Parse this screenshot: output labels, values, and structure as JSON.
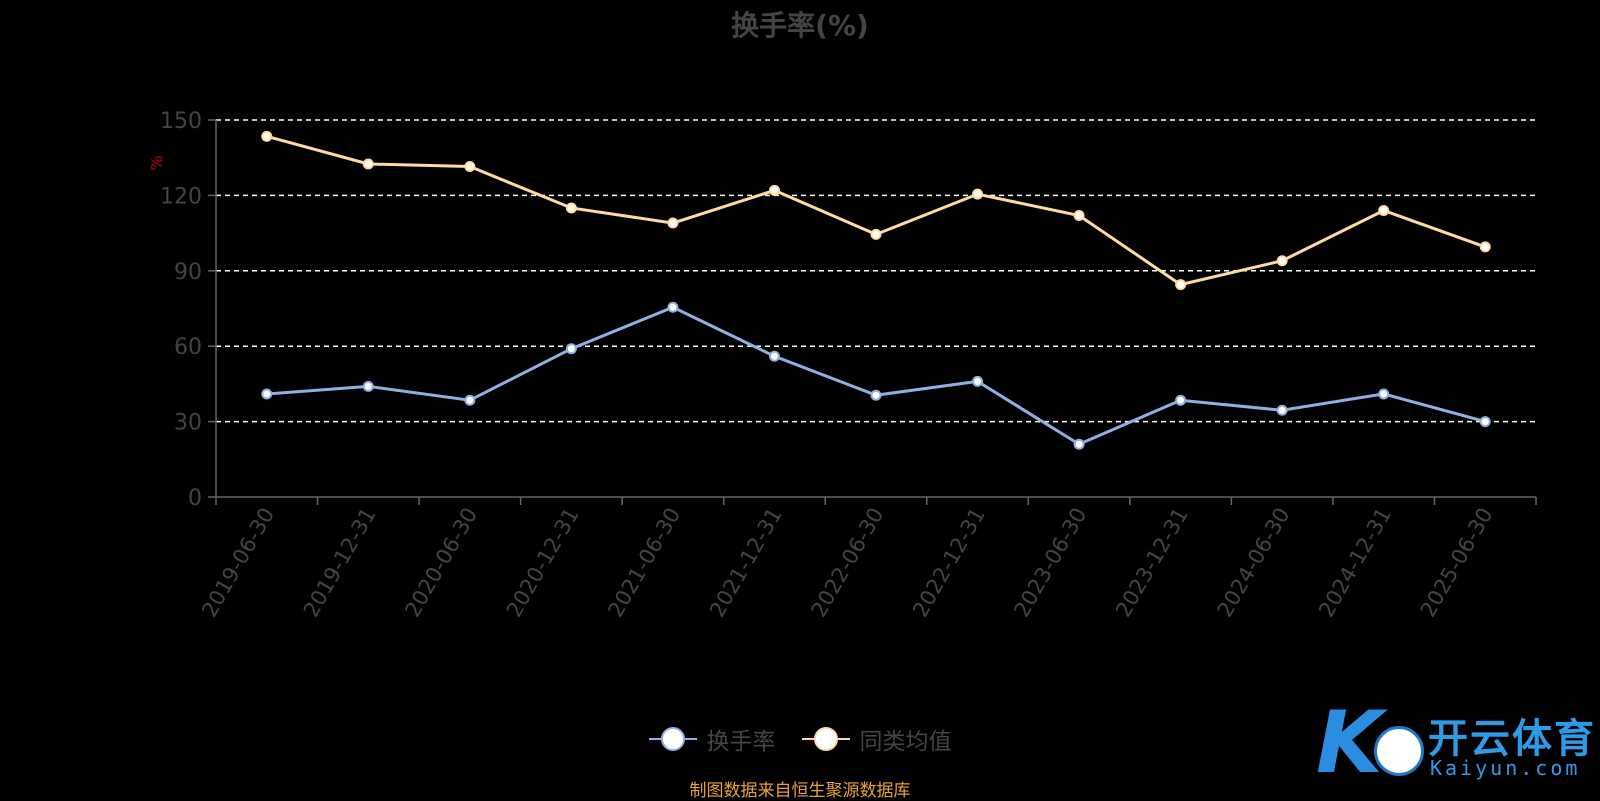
{
  "source": "制图数据来自恒生聚源数据库",
  "logo": {
    "text_cn": "开云体育",
    "text_en": "Kaiyun.com"
  },
  "colors": {
    "series1": "#8fb0e0",
    "series2": "#ffdba0",
    "grid": "#ffffff",
    "axis": "#666666",
    "ylabel": "#c00000"
  },
  "chart_data": {
    "type": "line",
    "title": "换手率(%)",
    "ylabel": "%",
    "ylim": [
      0,
      150
    ],
    "yticks": [
      0,
      30,
      60,
      90,
      120,
      150
    ],
    "grid": true,
    "legend_position": "bottom-center",
    "categories": [
      "2019-06-30",
      "2019-12-31",
      "2020-06-30",
      "2020-12-31",
      "2021-06-30",
      "2021-12-31",
      "2022-06-30",
      "2022-12-31",
      "2023-06-30",
      "2023-12-31",
      "2024-06-30",
      "2024-12-31",
      "2025-06-30"
    ],
    "series": [
      {
        "name": "换手率",
        "values": [
          41,
          44,
          38.5,
          59,
          75.5,
          56,
          40.5,
          46,
          21,
          38.5,
          34.5,
          41,
          30
        ]
      },
      {
        "name": "同类均值",
        "values": [
          143.5,
          132.5,
          131.5,
          115,
          109,
          122,
          104.5,
          120.5,
          112,
          84.5,
          94,
          114,
          99.5
        ]
      }
    ]
  }
}
